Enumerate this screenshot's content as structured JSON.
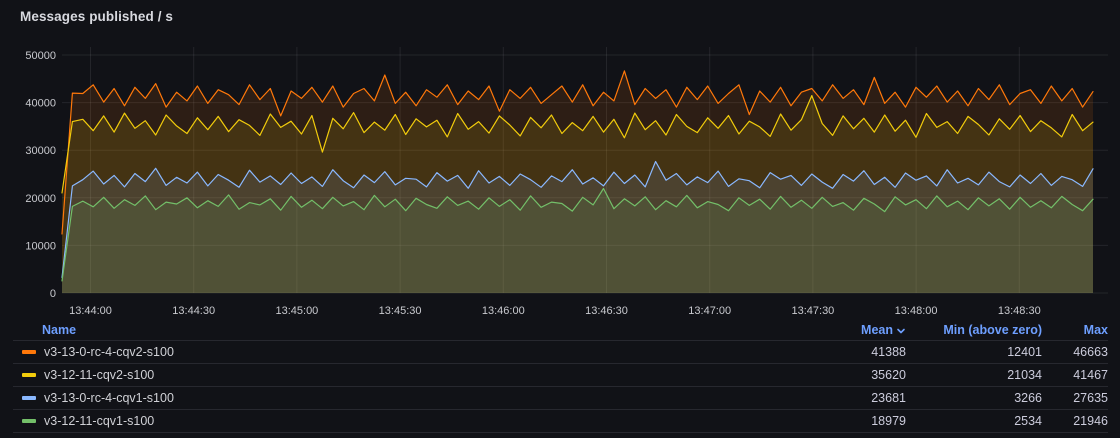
{
  "panel": {
    "title": "Messages published / s"
  },
  "colors": {
    "background": "#111217",
    "grid": "rgba(204,204,220,0.10)",
    "axis_text": "#C9CACF",
    "header_blue": "#6E9FFF",
    "row_text": "#CCCCDC",
    "separator": "rgba(204,204,220,0.12)",
    "title_text": "#D8D9DF"
  },
  "legend_table": {
    "headers": {
      "name": "Name",
      "mean": "Mean",
      "min": "Min (above zero)",
      "max": "Max"
    },
    "sorted_by": "Mean",
    "sort_direction": "desc"
  },
  "chart_data": {
    "type": "line",
    "title": "Messages published / s",
    "xlabel": "",
    "ylabel": "",
    "ylim": [
      0,
      50000
    ],
    "y_ticks": [
      0,
      10000,
      20000,
      30000,
      40000,
      50000
    ],
    "x_ticks": [
      "13:44:00",
      "13:44:30",
      "13:45:00",
      "13:45:30",
      "13:46:00",
      "13:46:30",
      "13:47:00",
      "13:47:30",
      "13:48:00",
      "13:48:30"
    ],
    "x_start": "13:43:52",
    "x_end": "13:48:51",
    "grid": true,
    "legend_position": "bottom-table",
    "fill_opacity": 0.12,
    "series": [
      {
        "name": "v3-13-0-rc-4-cqv2-s100",
        "color": "#FF780A",
        "mean": 41388,
        "min_above_zero": 12401,
        "max": 46663,
        "values": [
          12401,
          42000,
          41920,
          43740,
          40100,
          42960,
          39320,
          43220,
          40880,
          44000,
          39060,
          42180,
          40360,
          43480,
          39840,
          42700,
          41660,
          39580,
          43740,
          40620,
          42960,
          37200,
          42440,
          40880,
          43220,
          40100,
          43480,
          39060,
          41920,
          42960,
          40360,
          45800,
          39840,
          42180,
          39320,
          42700,
          41140,
          43740,
          39580,
          42440,
          40620,
          43480,
          38200,
          42700,
          40880,
          43220,
          39840,
          41660,
          43480,
          40100,
          43740,
          39320,
          42180,
          40360,
          46663,
          39580,
          42960,
          40880,
          42700,
          39060,
          43220,
          40620,
          43480,
          39840,
          41920,
          43740,
          37500,
          42440,
          40100,
          43220,
          39320,
          42180,
          42960,
          40360,
          43740,
          40880,
          42700,
          39580,
          45300,
          39840,
          42180,
          39060,
          43220,
          41140,
          43480,
          40100,
          42440,
          39320,
          42960,
          40620,
          43740,
          39580,
          41920,
          42700,
          39840,
          43480,
          40360,
          42960,
          39060,
          42310
        ]
      },
      {
        "name": "v3-12-11-cqv2-s100",
        "color": "#F2CC0C",
        "mean": 35620,
        "min_above_zero": 21034,
        "max": 41467,
        "values": [
          21034,
          36000,
          36500,
          34100,
          37200,
          33800,
          37800,
          34600,
          36200,
          33200,
          37400,
          35100,
          33500,
          36800,
          34300,
          37100,
          33900,
          36400,
          35200,
          33100,
          37600,
          34800,
          36100,
          33400,
          37300,
          29600,
          36700,
          34500,
          37900,
          33700,
          35900,
          34200,
          37500,
          33300,
          36600,
          34900,
          36300,
          32800,
          37700,
          34400,
          36000,
          33600,
          37200,
          35300,
          33000,
          36900,
          34700,
          37400,
          33500,
          35800,
          34100,
          37100,
          33800,
          36500,
          32600,
          37800,
          34300,
          36200,
          33200,
          37500,
          35000,
          33700,
          36800,
          34600,
          37300,
          33400,
          36100,
          34900,
          32900,
          37600,
          34200,
          36400,
          41467,
          35600,
          33100,
          37200,
          34500,
          36700,
          33800,
          37400,
          34000,
          36300,
          32700,
          37700,
          34800,
          36000,
          33500,
          37100,
          35400,
          33200,
          36600,
          34400,
          37300,
          33900,
          36200,
          34700,
          32800,
          37500,
          34100,
          35900
        ]
      },
      {
        "name": "v3-13-0-rc-4-cqv1-s100",
        "color": "#8AB8FF",
        "mean": 23681,
        "min_above_zero": 3266,
        "max": 27635,
        "values": [
          3266,
          22500,
          23800,
          25600,
          22900,
          24700,
          22300,
          25100,
          23400,
          26200,
          22600,
          24300,
          23100,
          25400,
          22500,
          24900,
          23700,
          22200,
          25800,
          23300,
          24600,
          22800,
          25200,
          23000,
          24400,
          22400,
          25900,
          23600,
          22100,
          24800,
          23200,
          25500,
          22700,
          24100,
          23900,
          22300,
          25300,
          23500,
          24700,
          22000,
          25700,
          23100,
          24500,
          22600,
          25000,
          23800,
          22200,
          24600,
          23400,
          25900,
          22900,
          24200,
          22500,
          25400,
          23000,
          24800,
          22300,
          27635,
          23700,
          25100,
          22700,
          24400,
          23200,
          25600,
          22400,
          24000,
          23600,
          22100,
          25300,
          23900,
          24700,
          22600,
          25000,
          23300,
          22000,
          24900,
          23500,
          25700,
          22800,
          24300,
          22200,
          25200,
          23700,
          24600,
          22500,
          25900,
          23100,
          24100,
          22700,
          25400,
          23400,
          22300,
          24800,
          23000,
          25100,
          22600,
          24500,
          23800,
          22400,
          26100
        ]
      },
      {
        "name": "v3-12-11-cqv1-s100",
        "color": "#73BF69",
        "mean": 18979,
        "min_above_zero": 2534,
        "max": 21946,
        "values": [
          2534,
          18200,
          19300,
          18100,
          20100,
          17800,
          19600,
          18400,
          20400,
          17500,
          19100,
          18700,
          20000,
          17900,
          19400,
          18200,
          20600,
          17600,
          19000,
          18500,
          19800,
          17400,
          20300,
          18000,
          19500,
          17700,
          20100,
          18300,
          19200,
          17500,
          20500,
          18100,
          19700,
          17300,
          19900,
          18600,
          17800,
          20200,
          18400,
          19300,
          17600,
          20000,
          18200,
          19600,
          17400,
          20400,
          18000,
          19100,
          18800,
          17200,
          20100,
          18500,
          21946,
          17700,
          19800,
          18300,
          20200,
          17500,
          19400,
          18100,
          20500,
          17900,
          19200,
          18600,
          17300,
          20000,
          18400,
          19700,
          17600,
          20300,
          18000,
          19500,
          17800,
          20100,
          18200,
          19000,
          17400,
          19900,
          18700,
          17100,
          20200,
          18500,
          19600,
          17700,
          20400,
          18100,
          19300,
          17500,
          20000,
          18300,
          19800,
          17600,
          20100,
          18000,
          19400,
          17900,
          20300,
          18600,
          17300,
          19700
        ]
      }
    ]
  }
}
